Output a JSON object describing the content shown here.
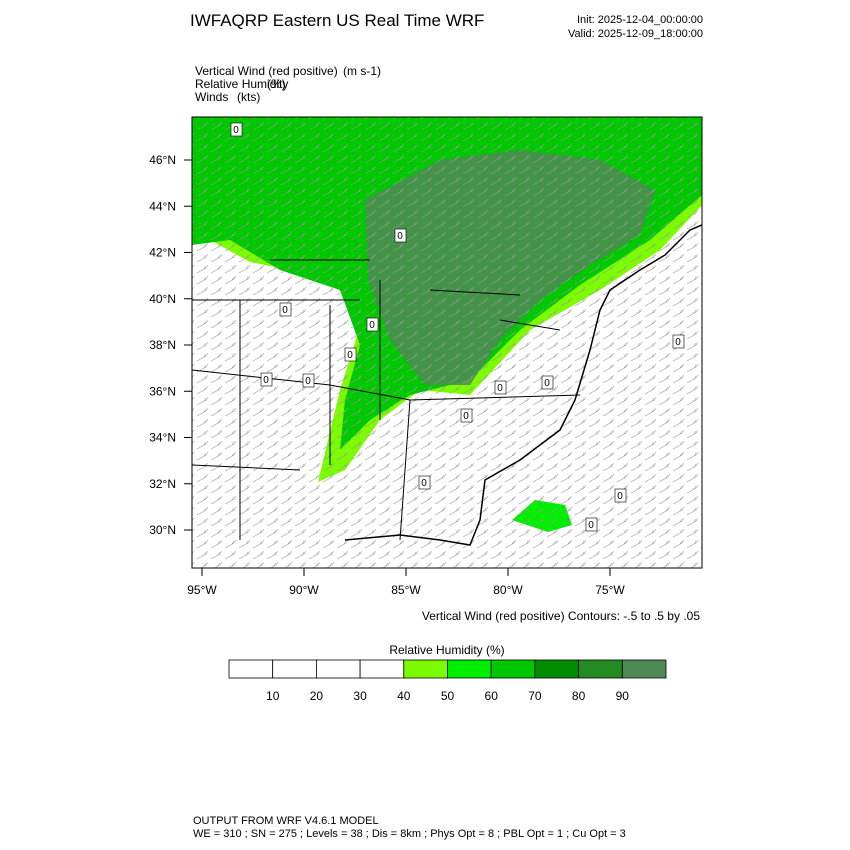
{
  "header": {
    "title": "IWFAQRP Eastern US Real Time WRF",
    "init": "Init: 2025-12-04_00:00:00",
    "valid": "Valid: 2025-12-09_18:00:00"
  },
  "fields": [
    {
      "name": "Vertical Wind (red positive)",
      "units": "(m s-1)"
    },
    {
      "name": "Relative Humidity",
      "units": "(%)"
    },
    {
      "name": "Winds",
      "units": "(kts)"
    }
  ],
  "map": {
    "lat_labels": [
      "46°N",
      "44°N",
      "42°N",
      "40°N",
      "38°N",
      "36°N",
      "34°N",
      "32°N",
      "30°N"
    ],
    "lon_labels": [
      "95°W",
      "90°W",
      "85°W",
      "80°W",
      "75°W"
    ],
    "contour_labels": [
      "0",
      "0",
      "0",
      "0",
      "0",
      "0",
      "0",
      "0",
      "0",
      "0",
      "0",
      "0",
      "0",
      "0"
    ],
    "contour_note": "Vertical Wind (red positive) Contours: -.5 to .5 by .05"
  },
  "colorbar": {
    "title": "Relative Humidity  (%)",
    "labels": [
      10,
      20,
      30,
      40,
      50,
      60,
      70,
      80,
      90
    ],
    "colors": [
      "#ffffff",
      "#ffffff",
      "#ffffff",
      "#ffffff",
      "#7cfc00",
      "#00ee00",
      "#00c800",
      "#008b00",
      "#228b22",
      "#4f8a55"
    ]
  },
  "footer": {
    "line1": "OUTPUT FROM WRF V4.6.1 MODEL",
    "line2": "WE = 310 ; SN = 275 ; Levels = 38 ; Dis = 8km ; Phys Opt = 8 ; PBL Opt = 1 ; Cu Opt = 3"
  }
}
